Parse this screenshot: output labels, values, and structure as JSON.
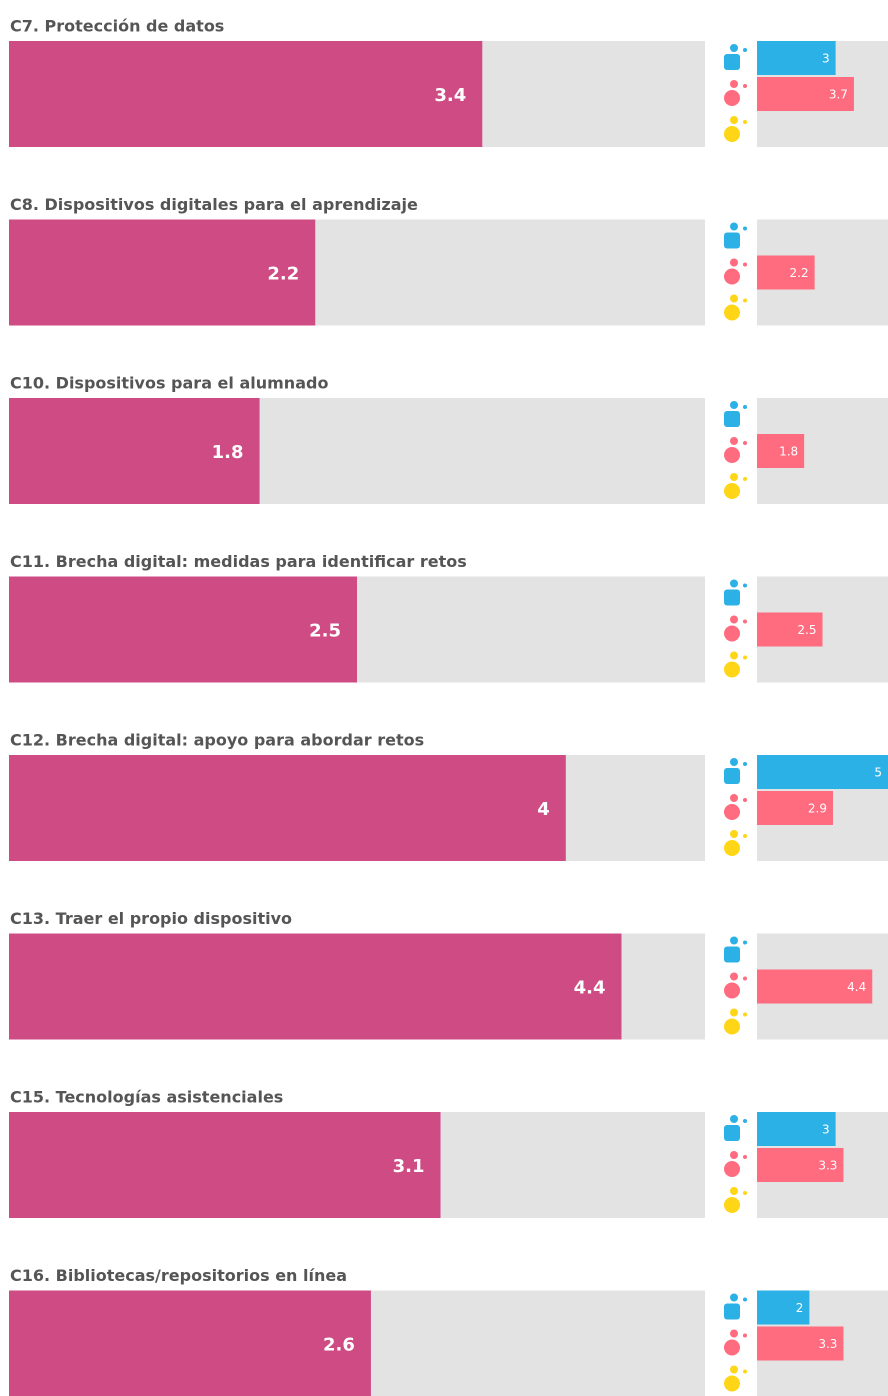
{
  "chart_data": [
    {
      "type": "bar",
      "title": "C7. Protección de datos",
      "value": 3.4,
      "color": "#cf4b84",
      "xlim": [
        0,
        5
      ],
      "groups": [
        {
          "color": "#2cb1e6",
          "value": 3
        },
        {
          "color": "#ff6b7f",
          "value": 3.7
        },
        {
          "color": "#ffd617",
          "value": null
        }
      ]
    },
    {
      "type": "bar",
      "title": "C8. Dispositivos digitales para el aprendizaje",
      "value": 2.2,
      "color": "#cf4b84",
      "xlim": [
        0,
        5
      ],
      "groups": [
        {
          "color": "#2cb1e6",
          "value": null
        },
        {
          "color": "#ff6b7f",
          "value": 2.2
        },
        {
          "color": "#ffd617",
          "value": null
        }
      ]
    },
    {
      "type": "bar",
      "title": "C10. Dispositivos para el alumnado",
      "value": 1.8,
      "color": "#cf4b84",
      "xlim": [
        0,
        5
      ],
      "groups": [
        {
          "color": "#2cb1e6",
          "value": null
        },
        {
          "color": "#ff6b7f",
          "value": 1.8
        },
        {
          "color": "#ffd617",
          "value": null
        }
      ]
    },
    {
      "type": "bar",
      "title": "C11. Brecha digital: medidas para identificar retos",
      "value": 2.5,
      "color": "#cf4b84",
      "xlim": [
        0,
        5
      ],
      "groups": [
        {
          "color": "#2cb1e6",
          "value": null
        },
        {
          "color": "#ff6b7f",
          "value": 2.5
        },
        {
          "color": "#ffd617",
          "value": null
        }
      ]
    },
    {
      "type": "bar",
      "title": "C12. Brecha digital: apoyo para abordar retos",
      "value": 4,
      "color": "#cf4b84",
      "xlim": [
        0,
        5
      ],
      "groups": [
        {
          "color": "#2cb1e6",
          "value": 5
        },
        {
          "color": "#ff6b7f",
          "value": 2.9
        },
        {
          "color": "#ffd617",
          "value": null
        }
      ]
    },
    {
      "type": "bar",
      "title": "C13. Traer el propio dispositivo",
      "value": 4.4,
      "color": "#cf4b84",
      "xlim": [
        0,
        5
      ],
      "groups": [
        {
          "color": "#2cb1e6",
          "value": null
        },
        {
          "color": "#ff6b7f",
          "value": 4.4
        },
        {
          "color": "#ffd617",
          "value": null
        }
      ]
    },
    {
      "type": "bar",
      "title": "C15. Tecnologías asistenciales",
      "value": 3.1,
      "color": "#cf4b84",
      "xlim": [
        0,
        5
      ],
      "groups": [
        {
          "color": "#2cb1e6",
          "value": 3
        },
        {
          "color": "#ff6b7f",
          "value": 3.3
        },
        {
          "color": "#ffd617",
          "value": null
        }
      ]
    },
    {
      "type": "bar",
      "title": "C16. Bibliotecas/repositorios en línea",
      "value": 2.6,
      "color": "#cf4b84",
      "xlim": [
        0,
        5
      ],
      "groups": [
        {
          "color": "#2cb1e6",
          "value": 2
        },
        {
          "color": "#ff6b7f",
          "value": 3.3
        },
        {
          "color": "#ffd617",
          "value": null
        }
      ]
    }
  ]
}
